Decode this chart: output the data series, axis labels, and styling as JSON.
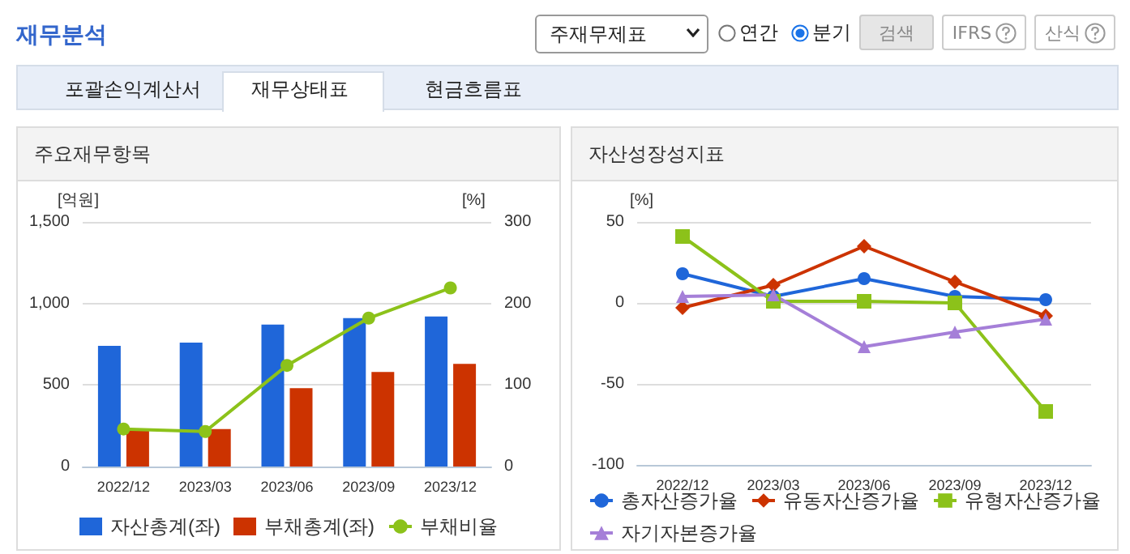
{
  "chart_data": [
    {
      "type": "bar",
      "title": "주요재무항목",
      "annotations": [
        "재무분석",
        "주재무제표",
        "연간",
        "분기",
        "검색",
        "IFRS",
        "산식",
        "포괄손익계산서",
        "재무상태표",
        "현금흐름표"
      ],
      "ylabel": "[억원]",
      "y2label": "[%]",
      "categories": [
        "2022/12",
        "2023/03",
        "2023/06",
        "2023/09",
        "2023/12"
      ],
      "series": [
        {
          "name": "자산총계(좌)",
          "color": "#1f66d9",
          "values": [
            740,
            760,
            870,
            910,
            920
          ]
        },
        {
          "name": "부채총계(좌)",
          "color": "#cc3300",
          "values": [
            220,
            230,
            480,
            580,
            630
          ]
        },
        {
          "name": "부채비율",
          "type": "line",
          "axis": "y2",
          "color": "#8cc21a",
          "marker": "circle",
          "values": [
            46,
            43,
            124,
            182,
            219
          ]
        }
      ],
      "ylim": [
        0,
        1500
      ],
      "yticks": [
        0,
        500,
        {
          "value": 1000,
          "label": "1,000"
        },
        {
          "value": 1500,
          "label": "1,500"
        }
      ],
      "y2lim": [
        0,
        300
      ],
      "y2ticks": [
        0,
        100,
        200,
        300
      ],
      "grid": "y",
      "legend": "bottom"
    },
    {
      "type": "line",
      "title": "자산성장성지표",
      "ylabel": "[%]",
      "categories": [
        "2022/12",
        "2023/03",
        "2023/06",
        "2023/09",
        "2023/12"
      ],
      "series": [
        {
          "name": "총자산증가율",
          "color": "#1f66d9",
          "marker": "circle",
          "values": [
            18,
            4,
            15,
            4,
            2
          ]
        },
        {
          "name": "유동자산증가율",
          "color": "#cc3300",
          "marker": "diamond",
          "values": [
            -3,
            11,
            35,
            13,
            -8
          ]
        },
        {
          "name": "유형자산증가율",
          "color": "#8cc21a",
          "marker": "square",
          "values": [
            41,
            1,
            1,
            0,
            -67
          ]
        },
        {
          "name": "자기자본증가율",
          "color": "#a57fd8",
          "marker": "triangle",
          "values": [
            4,
            5,
            -27,
            -18,
            -10
          ]
        }
      ],
      "ylim": [
        -100,
        50
      ],
      "yticks": [
        -100,
        -50,
        0,
        50
      ],
      "grid": "y",
      "legend": "bottom"
    }
  ]
}
